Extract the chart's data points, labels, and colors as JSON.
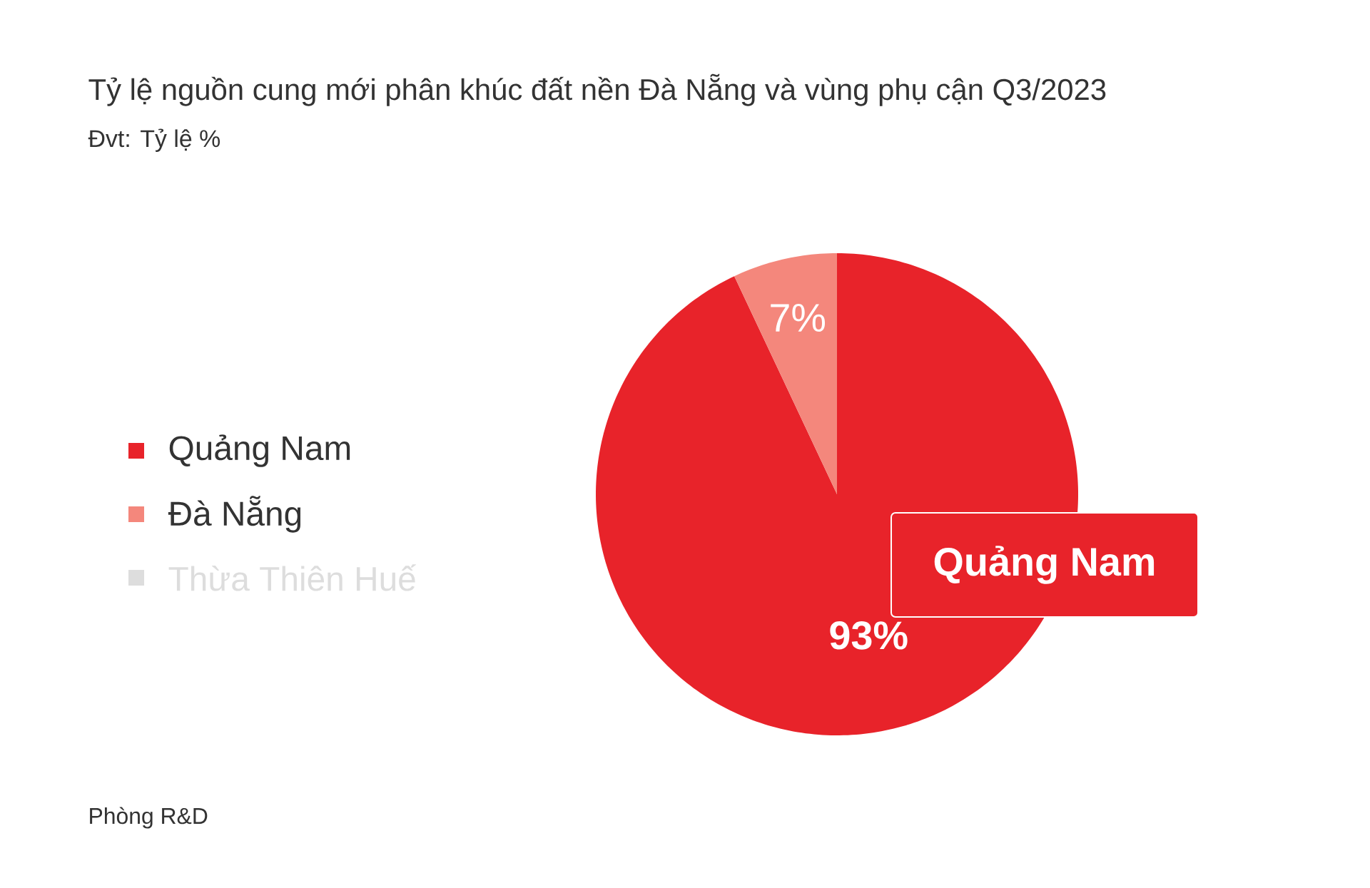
{
  "chart_data": {
    "type": "pie",
    "title": "Tỷ lệ nguồn cung mới phân khúc đất nền Đà Nẵng và vùng phụ cận Q3/2023",
    "subtitle": "Đvt: Tỷ lệ %",
    "categories": [
      "Quảng Nam",
      "Đà Nẵng",
      "Thừa Thiên Huế"
    ],
    "values": [
      93,
      7,
      0
    ],
    "colors": [
      "#e8232a",
      "#f4877c",
      "#dddddd"
    ],
    "value_labels": [
      "93%",
      "7%",
      null
    ],
    "legend": "left",
    "annotations": [
      "Quảng Nam",
      "Phòng R&D"
    ]
  }
}
